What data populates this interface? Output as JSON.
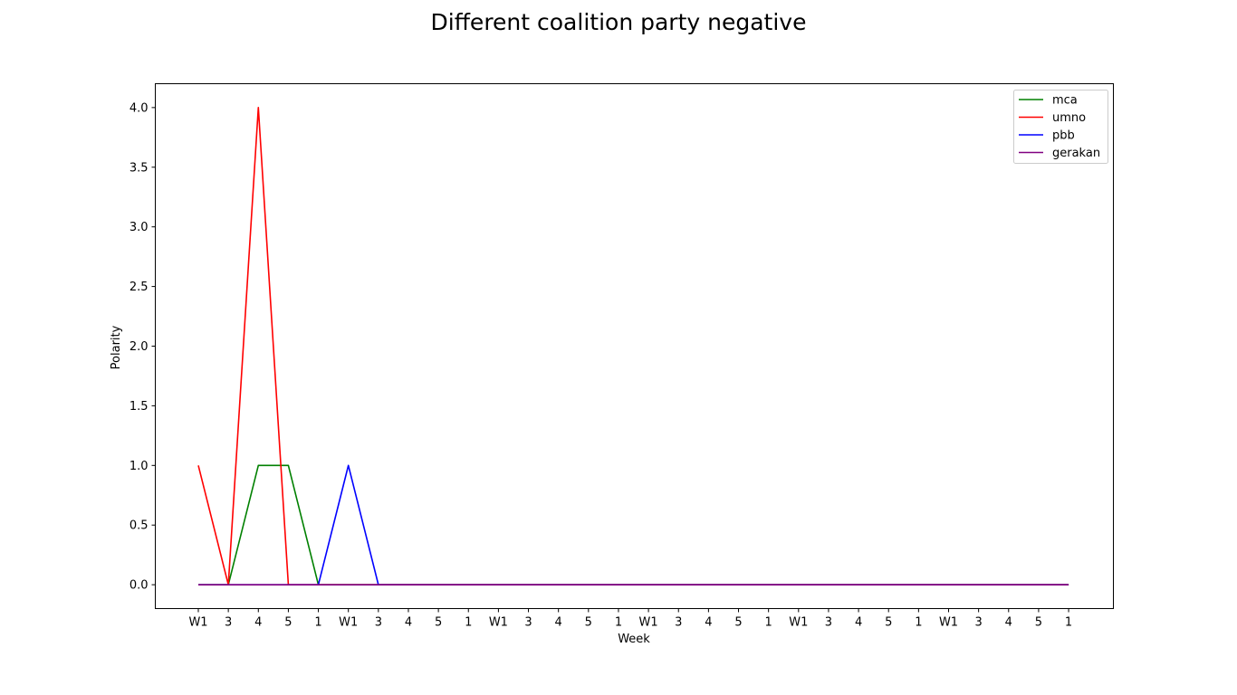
{
  "chart_data": {
    "type": "line",
    "title": "Different coalition party negative",
    "xlabel": "Week",
    "ylabel": "Polarity",
    "x_tick_labels": [
      "W1",
      "3",
      "4",
      "5",
      "1",
      "W1",
      "3",
      "4",
      "5",
      "1",
      "W1",
      "3",
      "4",
      "5",
      "1",
      "W1",
      "3",
      "4",
      "5",
      "1",
      "W1",
      "3",
      "4",
      "5",
      "1",
      "W1",
      "3",
      "4",
      "5",
      "1"
    ],
    "y_ticks": [
      "0.0",
      "0.5",
      "1.0",
      "1.5",
      "2.0",
      "2.5",
      "3.0",
      "3.5",
      "4.0"
    ],
    "ylim": [
      -0.2,
      4.2
    ],
    "grid": false,
    "legend_position": "top-right",
    "series": [
      {
        "name": "mca",
        "color": "#008000",
        "values": [
          0,
          0,
          1,
          1,
          0,
          0,
          0,
          0,
          0,
          0,
          0,
          0,
          0,
          0,
          0,
          0,
          0,
          0,
          0,
          0,
          0,
          0,
          0,
          0,
          0,
          0,
          0,
          0,
          0,
          0
        ]
      },
      {
        "name": "umno",
        "color": "#ff0000",
        "values": [
          1,
          0,
          4,
          0,
          0,
          0,
          0,
          0,
          0,
          0,
          0,
          0,
          0,
          0,
          0,
          0,
          0,
          0,
          0,
          0,
          0,
          0,
          0,
          0,
          0,
          0,
          0,
          0,
          0,
          0
        ]
      },
      {
        "name": "pbb",
        "color": "#0000ff",
        "values": [
          0,
          0,
          0,
          0,
          0,
          1,
          0,
          0,
          0,
          0,
          0,
          0,
          0,
          0,
          0,
          0,
          0,
          0,
          0,
          0,
          0,
          0,
          0,
          0,
          0,
          0,
          0,
          0,
          0,
          0
        ]
      },
      {
        "name": "gerakan",
        "color": "#800080",
        "values": [
          0,
          0,
          0,
          0,
          0,
          0,
          0,
          0,
          0,
          0,
          0,
          0,
          0,
          0,
          0,
          0,
          0,
          0,
          0,
          0,
          0,
          0,
          0,
          0,
          0,
          0,
          0,
          0,
          0,
          0
        ]
      }
    ]
  }
}
